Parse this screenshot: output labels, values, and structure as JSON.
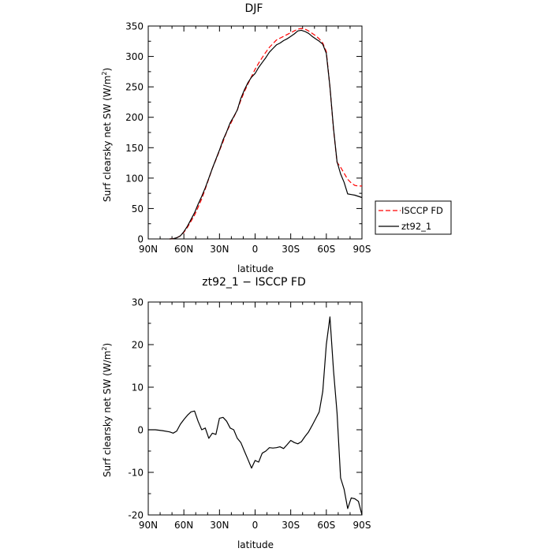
{
  "chart_data": [
    {
      "type": "line",
      "title": "DJF",
      "xlabel": "latitude",
      "ylabel": "Surf clearsky net SW (W/m",
      "ylabel_sup": "2",
      "ylabel_end": ")",
      "xlim": [
        90,
        -90
      ],
      "ylim": [
        0,
        350
      ],
      "xticks": [
        {
          "value": 90,
          "label": "90N"
        },
        {
          "value": 60,
          "label": "60N"
        },
        {
          "value": 30,
          "label": "30N"
        },
        {
          "value": 0,
          "label": "0"
        },
        {
          "value": -30,
          "label": "30S"
        },
        {
          "value": -60,
          "label": "60S"
        },
        {
          "value": -90,
          "label": "90S"
        }
      ],
      "yticks": [
        0,
        50,
        100,
        150,
        200,
        250,
        300,
        350
      ],
      "grid": false,
      "legend_position": "outside-right",
      "series": [
        {
          "name": "ISCCP FD",
          "color": "#ff0000",
          "dash": "dashed",
          "x": [
            72,
            69,
            66,
            63,
            60,
            57,
            54,
            51,
            48,
            45,
            42,
            39,
            36,
            33,
            30,
            27,
            24,
            21,
            18,
            15,
            12,
            9,
            6,
            3,
            0,
            -3,
            -6,
            -9,
            -12,
            -15,
            -18,
            -21,
            -24,
            -27,
            -30,
            -33,
            -36,
            -39,
            -42,
            -45,
            -48,
            -51,
            -54,
            -57,
            -60,
            -63,
            -66,
            -69,
            -72,
            -75,
            -78,
            -81,
            -84,
            -87,
            -90
          ],
          "y": [
            0,
            0.4,
            2,
            5,
            11,
            19,
            29,
            39,
            52,
            66,
            82,
            99,
            116,
            130,
            145,
            160,
            176,
            188,
            200,
            212,
            228,
            242,
            255,
            267,
            279,
            289,
            298,
            307,
            315,
            321,
            327,
            330,
            333,
            336,
            339,
            342,
            345,
            346,
            345,
            342,
            338,
            334,
            329,
            322,
            308,
            250,
            180,
            126,
            118,
            108,
            98,
            92,
            88,
            87,
            87
          ]
        },
        {
          "name": "zt92_1",
          "color": "#000000",
          "dash": "solid",
          "x": [
            72,
            69,
            66,
            63,
            60,
            57,
            54,
            51,
            48,
            45,
            42,
            39,
            36,
            33,
            30,
            27,
            24,
            21,
            18,
            15,
            12,
            9,
            6,
            3,
            0,
            -3,
            -6,
            -9,
            -12,
            -15,
            -18,
            -21,
            -24,
            -27,
            -30,
            -33,
            -36,
            -39,
            -42,
            -45,
            -48,
            -51,
            -54,
            -57,
            -60,
            -63,
            -66,
            -69,
            -72,
            -75,
            -78,
            -81,
            -84,
            -87,
            -90
          ],
          "y": [
            0,
            0.4,
            2,
            5,
            12,
            21,
            32,
            43,
            57,
            70,
            84,
            100,
            116,
            131,
            146,
            163,
            176,
            191,
            201,
            212,
            231,
            245,
            257,
            266,
            272,
            282,
            290,
            298,
            307,
            313,
            319,
            322,
            326,
            329,
            333,
            337,
            342,
            343,
            341,
            338,
            333,
            329,
            325,
            320,
            305,
            250,
            182,
            127,
            107,
            93,
            74,
            73,
            72,
            70,
            68
          ]
        }
      ]
    },
    {
      "type": "line",
      "title": "zt92_1 − ISCCP FD",
      "xlabel": "latitude",
      "ylabel": "Surf clearsky net SW (W/m",
      "ylabel_sup": "2",
      "ylabel_end": ")",
      "xlim": [
        90,
        -90
      ],
      "ylim": [
        -20,
        30
      ],
      "xticks": [
        {
          "value": 90,
          "label": "90N"
        },
        {
          "value": 60,
          "label": "60N"
        },
        {
          "value": 30,
          "label": "30N"
        },
        {
          "value": 0,
          "label": "0"
        },
        {
          "value": -30,
          "label": "30S"
        },
        {
          "value": -60,
          "label": "60S"
        },
        {
          "value": -90,
          "label": "90S"
        }
      ],
      "yticks": [
        -20,
        -10,
        0,
        10,
        20,
        30
      ],
      "grid": false,
      "series": [
        {
          "color": "#000000",
          "dash": "solid",
          "x": [
            90,
            84,
            78,
            72,
            69,
            66,
            63,
            60,
            57,
            54,
            51,
            48,
            45,
            42,
            39,
            36,
            33,
            30,
            27,
            24,
            21,
            18,
            15,
            12,
            9,
            6,
            3,
            0,
            -3,
            -6,
            -9,
            -12,
            -15,
            -18,
            -21,
            -24,
            -27,
            -30,
            -33,
            -36,
            -39,
            -42,
            -45,
            -48,
            -51,
            -54,
            -57,
            -60,
            -63,
            -66,
            -69,
            -72,
            -75,
            -78,
            -81,
            -84,
            -87,
            -90
          ],
          "y": [
            0,
            0,
            -0.2,
            -0.5,
            -0.8,
            -0.3,
            1.3,
            2.4,
            3.4,
            4.2,
            4.4,
            2.0,
            0,
            0.4,
            -2.0,
            -0.8,
            -1.1,
            2.7,
            2.9,
            2.0,
            0.4,
            0,
            -2.0,
            -3.0,
            -5.0,
            -7.0,
            -9.0,
            -7.2,
            -7.6,
            -5.5,
            -5.0,
            -4.2,
            -4.3,
            -4.2,
            -4.0,
            -4.4,
            -3.5,
            -2.5,
            -3.0,
            -3.3,
            -2.8,
            -1.6,
            -0.5,
            1.0,
            2.6,
            4.2,
            9.0,
            20.0,
            26.5,
            14.0,
            4.0,
            -11.3,
            -14.0,
            -18.5,
            -16.0,
            -16.2,
            -16.8,
            -20.0
          ]
        }
      ]
    }
  ]
}
